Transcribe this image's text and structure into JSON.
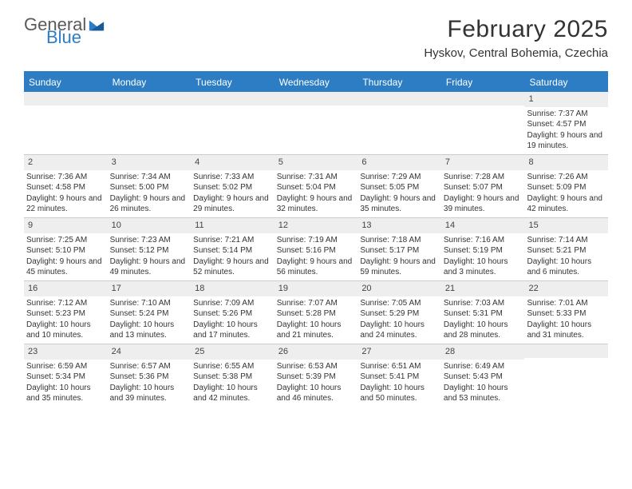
{
  "logo": {
    "text1": "General",
    "text2": "Blue",
    "color_general": "#5a5a5a",
    "color_blue": "#2d7dc4"
  },
  "title": "February 2025",
  "location": "Hyskov, Central Bohemia, Czechia",
  "header_bg": "#2d7dc4",
  "daynum_bg": "#eeeeee",
  "border_color": "#cccccc",
  "text_color": "#333333",
  "day_headers": [
    "Sunday",
    "Monday",
    "Tuesday",
    "Wednesday",
    "Thursday",
    "Friday",
    "Saturday"
  ],
  "weeks": [
    [
      {
        "n": "",
        "lines": []
      },
      {
        "n": "",
        "lines": []
      },
      {
        "n": "",
        "lines": []
      },
      {
        "n": "",
        "lines": []
      },
      {
        "n": "",
        "lines": []
      },
      {
        "n": "",
        "lines": []
      },
      {
        "n": "1",
        "lines": [
          "Sunrise: 7:37 AM",
          "Sunset: 4:57 PM",
          "Daylight: 9 hours and 19 minutes."
        ]
      }
    ],
    [
      {
        "n": "2",
        "lines": [
          "Sunrise: 7:36 AM",
          "Sunset: 4:58 PM",
          "Daylight: 9 hours and 22 minutes."
        ]
      },
      {
        "n": "3",
        "lines": [
          "Sunrise: 7:34 AM",
          "Sunset: 5:00 PM",
          "Daylight: 9 hours and 26 minutes."
        ]
      },
      {
        "n": "4",
        "lines": [
          "Sunrise: 7:33 AM",
          "Sunset: 5:02 PM",
          "Daylight: 9 hours and 29 minutes."
        ]
      },
      {
        "n": "5",
        "lines": [
          "Sunrise: 7:31 AM",
          "Sunset: 5:04 PM",
          "Daylight: 9 hours and 32 minutes."
        ]
      },
      {
        "n": "6",
        "lines": [
          "Sunrise: 7:29 AM",
          "Sunset: 5:05 PM",
          "Daylight: 9 hours and 35 minutes."
        ]
      },
      {
        "n": "7",
        "lines": [
          "Sunrise: 7:28 AM",
          "Sunset: 5:07 PM",
          "Daylight: 9 hours and 39 minutes."
        ]
      },
      {
        "n": "8",
        "lines": [
          "Sunrise: 7:26 AM",
          "Sunset: 5:09 PM",
          "Daylight: 9 hours and 42 minutes."
        ]
      }
    ],
    [
      {
        "n": "9",
        "lines": [
          "Sunrise: 7:25 AM",
          "Sunset: 5:10 PM",
          "Daylight: 9 hours and 45 minutes."
        ]
      },
      {
        "n": "10",
        "lines": [
          "Sunrise: 7:23 AM",
          "Sunset: 5:12 PM",
          "Daylight: 9 hours and 49 minutes."
        ]
      },
      {
        "n": "11",
        "lines": [
          "Sunrise: 7:21 AM",
          "Sunset: 5:14 PM",
          "Daylight: 9 hours and 52 minutes."
        ]
      },
      {
        "n": "12",
        "lines": [
          "Sunrise: 7:19 AM",
          "Sunset: 5:16 PM",
          "Daylight: 9 hours and 56 minutes."
        ]
      },
      {
        "n": "13",
        "lines": [
          "Sunrise: 7:18 AM",
          "Sunset: 5:17 PM",
          "Daylight: 9 hours and 59 minutes."
        ]
      },
      {
        "n": "14",
        "lines": [
          "Sunrise: 7:16 AM",
          "Sunset: 5:19 PM",
          "Daylight: 10 hours and 3 minutes."
        ]
      },
      {
        "n": "15",
        "lines": [
          "Sunrise: 7:14 AM",
          "Sunset: 5:21 PM",
          "Daylight: 10 hours and 6 minutes."
        ]
      }
    ],
    [
      {
        "n": "16",
        "lines": [
          "Sunrise: 7:12 AM",
          "Sunset: 5:23 PM",
          "Daylight: 10 hours and 10 minutes."
        ]
      },
      {
        "n": "17",
        "lines": [
          "Sunrise: 7:10 AM",
          "Sunset: 5:24 PM",
          "Daylight: 10 hours and 13 minutes."
        ]
      },
      {
        "n": "18",
        "lines": [
          "Sunrise: 7:09 AM",
          "Sunset: 5:26 PM",
          "Daylight: 10 hours and 17 minutes."
        ]
      },
      {
        "n": "19",
        "lines": [
          "Sunrise: 7:07 AM",
          "Sunset: 5:28 PM",
          "Daylight: 10 hours and 21 minutes."
        ]
      },
      {
        "n": "20",
        "lines": [
          "Sunrise: 7:05 AM",
          "Sunset: 5:29 PM",
          "Daylight: 10 hours and 24 minutes."
        ]
      },
      {
        "n": "21",
        "lines": [
          "Sunrise: 7:03 AM",
          "Sunset: 5:31 PM",
          "Daylight: 10 hours and 28 minutes."
        ]
      },
      {
        "n": "22",
        "lines": [
          "Sunrise: 7:01 AM",
          "Sunset: 5:33 PM",
          "Daylight: 10 hours and 31 minutes."
        ]
      }
    ],
    [
      {
        "n": "23",
        "lines": [
          "Sunrise: 6:59 AM",
          "Sunset: 5:34 PM",
          "Daylight: 10 hours and 35 minutes."
        ]
      },
      {
        "n": "24",
        "lines": [
          "Sunrise: 6:57 AM",
          "Sunset: 5:36 PM",
          "Daylight: 10 hours and 39 minutes."
        ]
      },
      {
        "n": "25",
        "lines": [
          "Sunrise: 6:55 AM",
          "Sunset: 5:38 PM",
          "Daylight: 10 hours and 42 minutes."
        ]
      },
      {
        "n": "26",
        "lines": [
          "Sunrise: 6:53 AM",
          "Sunset: 5:39 PM",
          "Daylight: 10 hours and 46 minutes."
        ]
      },
      {
        "n": "27",
        "lines": [
          "Sunrise: 6:51 AM",
          "Sunset: 5:41 PM",
          "Daylight: 10 hours and 50 minutes."
        ]
      },
      {
        "n": "28",
        "lines": [
          "Sunrise: 6:49 AM",
          "Sunset: 5:43 PM",
          "Daylight: 10 hours and 53 minutes."
        ]
      },
      {
        "n": "",
        "lines": []
      }
    ]
  ]
}
